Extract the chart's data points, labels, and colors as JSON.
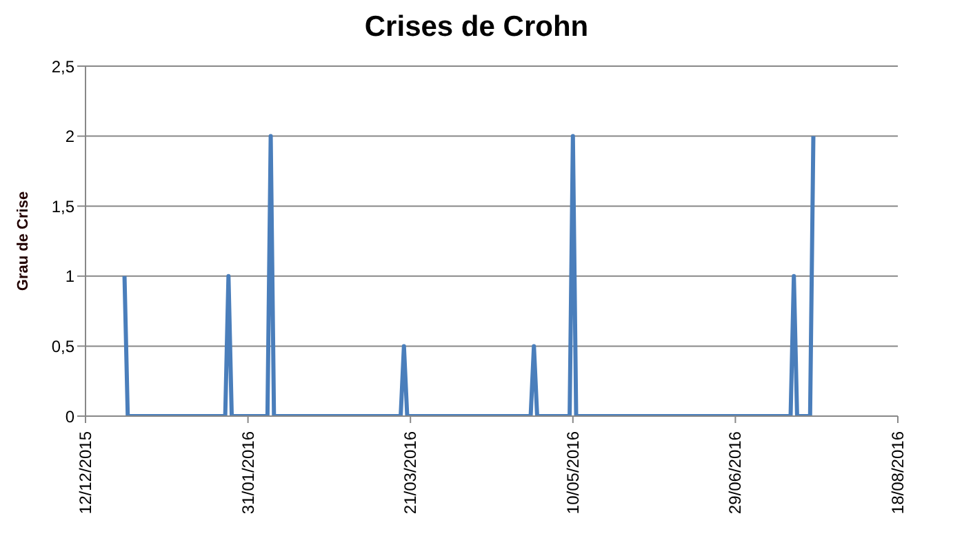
{
  "chart_data": {
    "type": "line",
    "title": "Crises de Crohn",
    "ylabel": "Grau de Crise",
    "x": [
      "2015-12-24",
      "2015-12-25",
      "2016-01-24",
      "2016-01-25",
      "2016-01-26",
      "2016-02-06",
      "2016-02-07",
      "2016-02-08",
      "2016-03-18",
      "2016-03-19",
      "2016-03-20",
      "2016-04-27",
      "2016-04-28",
      "2016-04-29",
      "2016-05-09",
      "2016-05-10",
      "2016-05-11",
      "2016-07-16",
      "2016-07-17",
      "2016-07-18",
      "2016-07-22",
      "2016-07-23"
    ],
    "series": [
      {
        "color": "#4a7ebb",
        "values": [
          1,
          0,
          0,
          1,
          0,
          0,
          2,
          0,
          0,
          0.5,
          0,
          0,
          0.5,
          0,
          0,
          2,
          0,
          0,
          1,
          0,
          0,
          2
        ]
      }
    ],
    "xlim": [
      "2015-12-12",
      "2016-08-18"
    ],
    "xticks": [
      {
        "value": "2015-12-12",
        "label": "12/12/2015"
      },
      {
        "value": "2016-01-31",
        "label": "31/01/2016"
      },
      {
        "value": "2016-03-21",
        "label": "21/03/2016"
      },
      {
        "value": "2016-05-10",
        "label": "10/05/2016"
      },
      {
        "value": "2016-06-29",
        "label": "29/06/2016"
      },
      {
        "value": "2016-08-18",
        "label": "18/08/2016"
      }
    ],
    "ylim": [
      0,
      2.5
    ],
    "yticks": [
      0,
      {
        "value": 0.5,
        "label": "0,5"
      },
      1,
      {
        "value": 1.5,
        "label": "1,5"
      },
      2,
      {
        "value": 2.5,
        "label": "2,5"
      }
    ],
    "grid": "y",
    "legend": false,
    "marker": "none",
    "line_style": "solid"
  }
}
